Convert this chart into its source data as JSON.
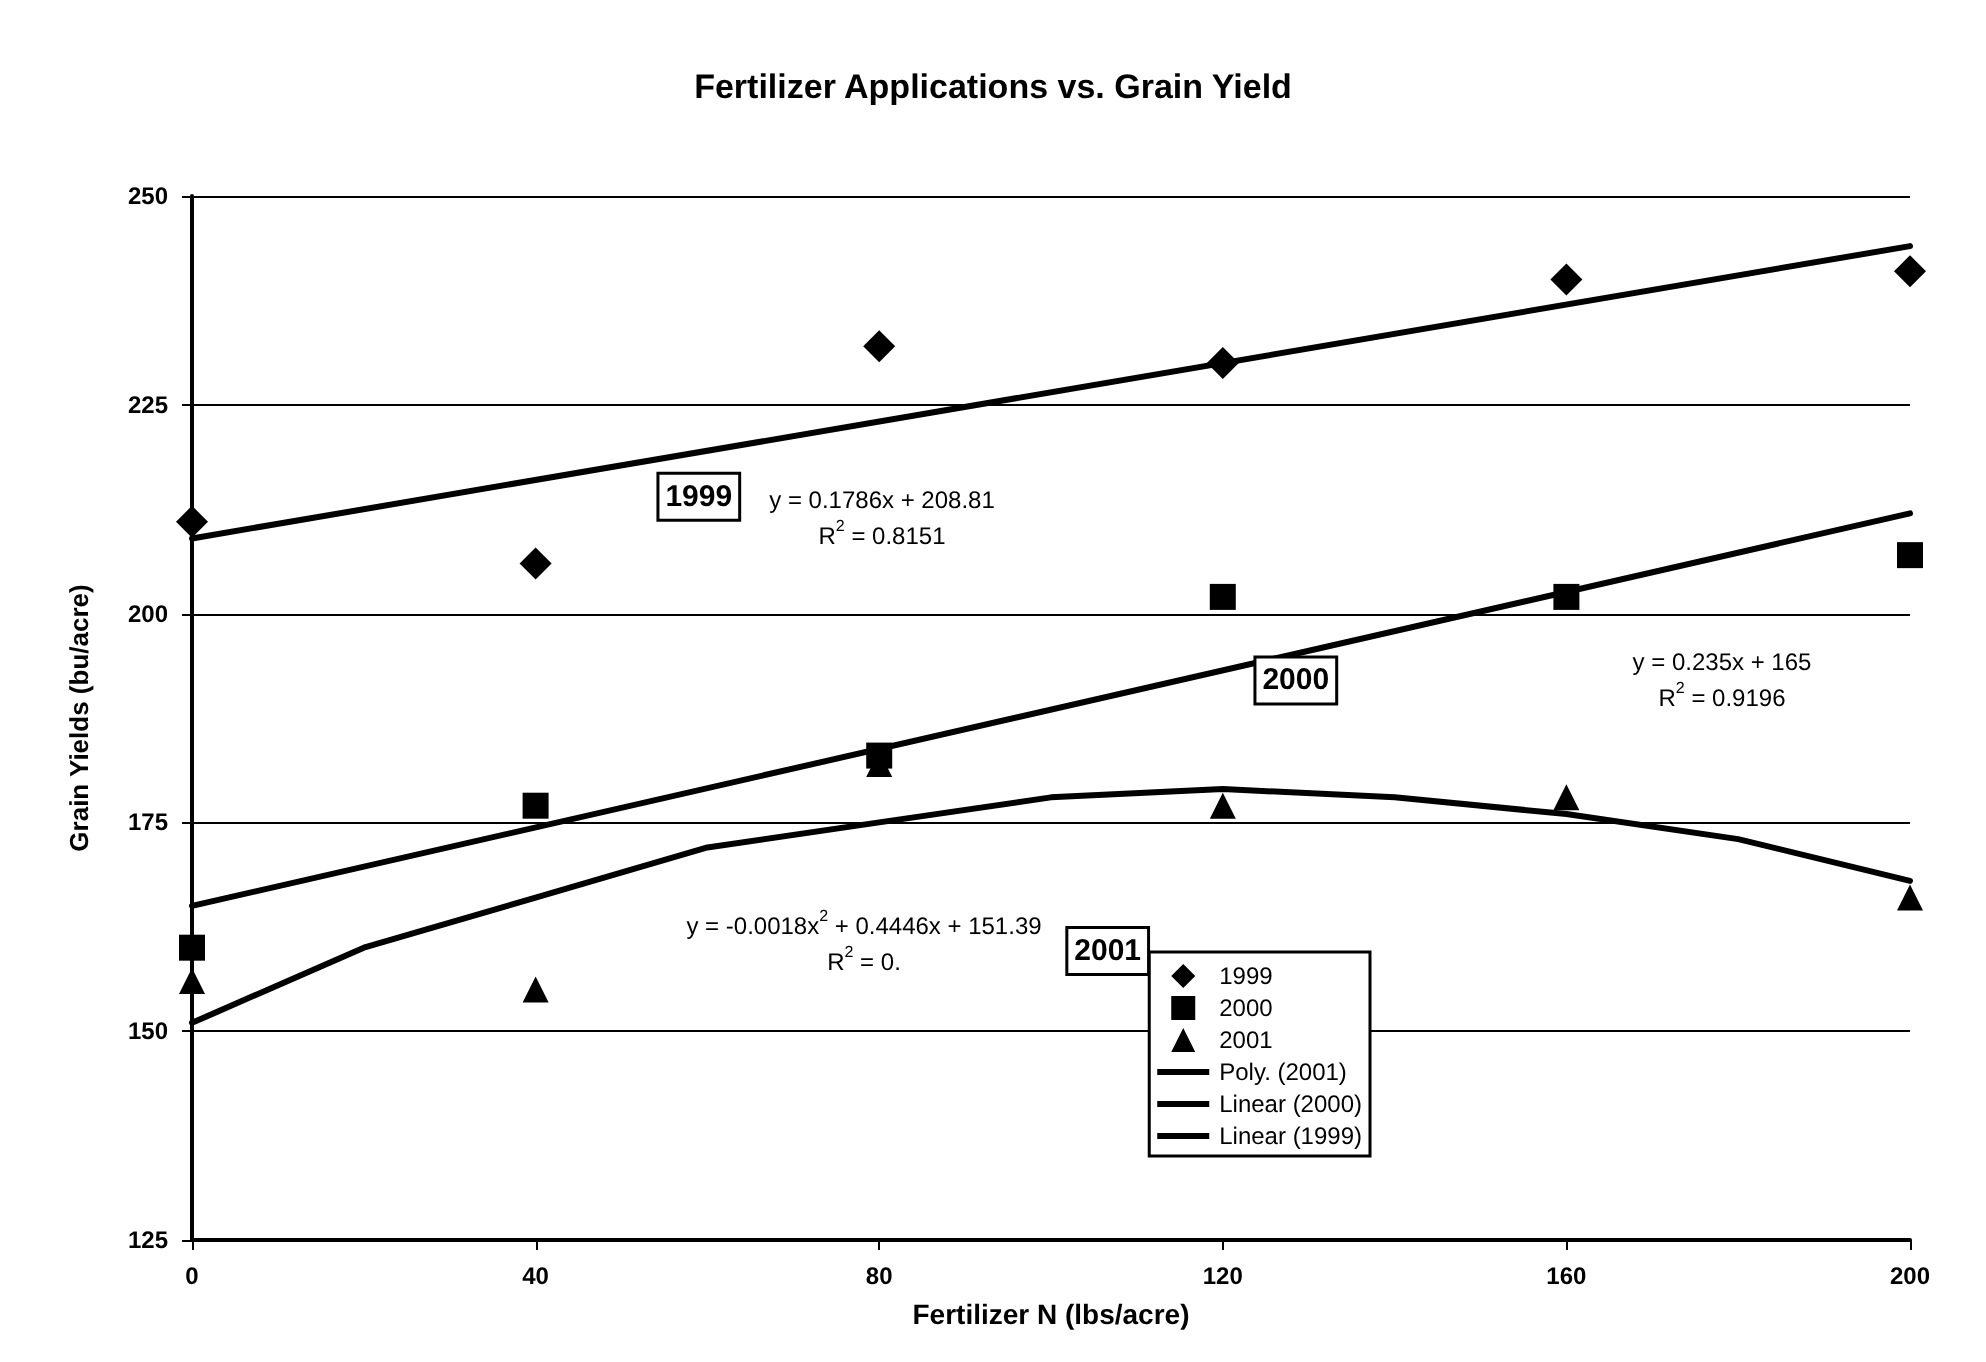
{
  "chart_data": {
    "type": "scatter",
    "title": "Fertilizer Applications vs. Grain Yield",
    "xlabel": "Fertilizer N (lbs/acre)",
    "ylabel": "Grain Yields (bu/acre)",
    "x": [
      0,
      40,
      80,
      120,
      160,
      200
    ],
    "series": [
      {
        "name": "1999",
        "color": "#000000",
        "marker": "diamond",
        "values": [
          211,
          206,
          232,
          230,
          240,
          241
        ]
      },
      {
        "name": "2000",
        "color": "#000000",
        "marker": "square",
        "values": [
          160,
          177,
          183,
          202,
          202,
          207
        ]
      },
      {
        "name": "2001",
        "color": "#000000",
        "marker": "triangle",
        "values": [
          156,
          155,
          182,
          177,
          178,
          166
        ]
      },
      {
        "name": "Poly. (2001)",
        "type": "line",
        "color": "#000000",
        "marker": "none",
        "x": [
          0,
          20,
          40,
          60,
          80,
          100,
          120,
          140,
          160,
          180,
          200
        ],
        "values": [
          151,
          160,
          166,
          172,
          175,
          178,
          179,
          178,
          176,
          173,
          168
        ]
      },
      {
        "name": "Linear (2000)",
        "type": "line",
        "color": "#000000",
        "marker": "none",
        "x": [
          0,
          200
        ],
        "values": [
          165,
          212
        ]
      },
      {
        "name": "Linear (1999)",
        "type": "line",
        "color": "#000000",
        "marker": "none",
        "x": [
          0,
          200
        ],
        "values": [
          209,
          244
        ]
      }
    ],
    "xlim": [
      0,
      200
    ],
    "xticks": [
      0,
      40,
      80,
      120,
      160,
      200
    ],
    "ylim": [
      125,
      250
    ],
    "yticks": [
      125,
      150,
      175,
      200,
      225,
      250
    ],
    "grid": "y",
    "legend": "bottom right",
    "line_style": "solid",
    "annotations": [
      "y = 0.1786x + 208.81\nR$^{2}$ = 0.8151",
      {
        "text": "1999",
        "x": 59,
        "y": 214
      },
      {
        "text": "2000",
        "x": 128.5,
        "y": 192
      },
      "y = 0.235x + 165\nR$^{2}$ = 0.9196",
      "y = -0.0018x$^{2}$ + 0.4446x + 151.39\nR$^{2}$ = 0.",
      {
        "text": "2001",
        "x": 106.6,
        "y": 159.6
      }
    ]
  }
}
